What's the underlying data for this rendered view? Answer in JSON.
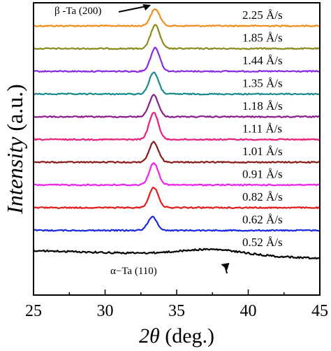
{
  "chart_data": {
    "type": "line",
    "xlabel": "2θ (deg.)",
    "ylabel": "Intensity (a.u.)",
    "xlim": [
      25,
      45
    ],
    "x_ticks": [
      "25",
      "30",
      "35",
      "40",
      "45"
    ],
    "y_ticks_shown": false,
    "series": [
      {
        "name": "2.25 Å/s",
        "color": "#f28c1c",
        "peak_x": 33.5,
        "peak_height": 1.0,
        "offset": 10
      },
      {
        "name": "1.85 Å/s",
        "color": "#8c8a1e",
        "peak_x": 33.5,
        "peak_height": 1.4,
        "offset": 9
      },
      {
        "name": "1.44 Å/s",
        "color": "#8a2be2",
        "peak_x": 33.5,
        "peak_height": 1.4,
        "offset": 8
      },
      {
        "name": "1.35 Å/s",
        "color": "#178a8a",
        "peak_x": 33.4,
        "peak_height": 1.3,
        "offset": 7
      },
      {
        "name": "1.18 Å/s",
        "color": "#8b1c8b",
        "peak_x": 33.4,
        "peak_height": 1.3,
        "offset": 6
      },
      {
        "name": "1.11 Å/s",
        "color": "#e8207a",
        "peak_x": 33.4,
        "peak_height": 1.6,
        "offset": 5
      },
      {
        "name": "1.01 Å/s",
        "color": "#8b1a1a",
        "peak_x": 33.4,
        "peak_height": 1.2,
        "offset": 4
      },
      {
        "name": "0.91 Å/s",
        "color": "#ee22ee",
        "peak_x": 33.4,
        "peak_height": 1.3,
        "offset": 3
      },
      {
        "name": "0.82 Å/s",
        "color": "#e51c1c",
        "peak_x": 33.4,
        "peak_height": 1.2,
        "offset": 2
      },
      {
        "name": "0.62 Å/s",
        "color": "#1a28e0",
        "peak_x": 33.3,
        "peak_height": 0.8,
        "offset": 1
      },
      {
        "name": "0.52 Å/s",
        "color": "#000000",
        "peak_x": 37.5,
        "peak_height": 0.35,
        "offset": 0,
        "broad": true
      }
    ],
    "annotations": [
      {
        "text": "β -Ta (200)",
        "arrow_to_x": 33.5,
        "series": "2.25 Å/s"
      },
      {
        "text": "α−Ta (110)",
        "arrow_to_x": 37.8,
        "series": "0.52 Å/s"
      }
    ],
    "grid": false
  }
}
